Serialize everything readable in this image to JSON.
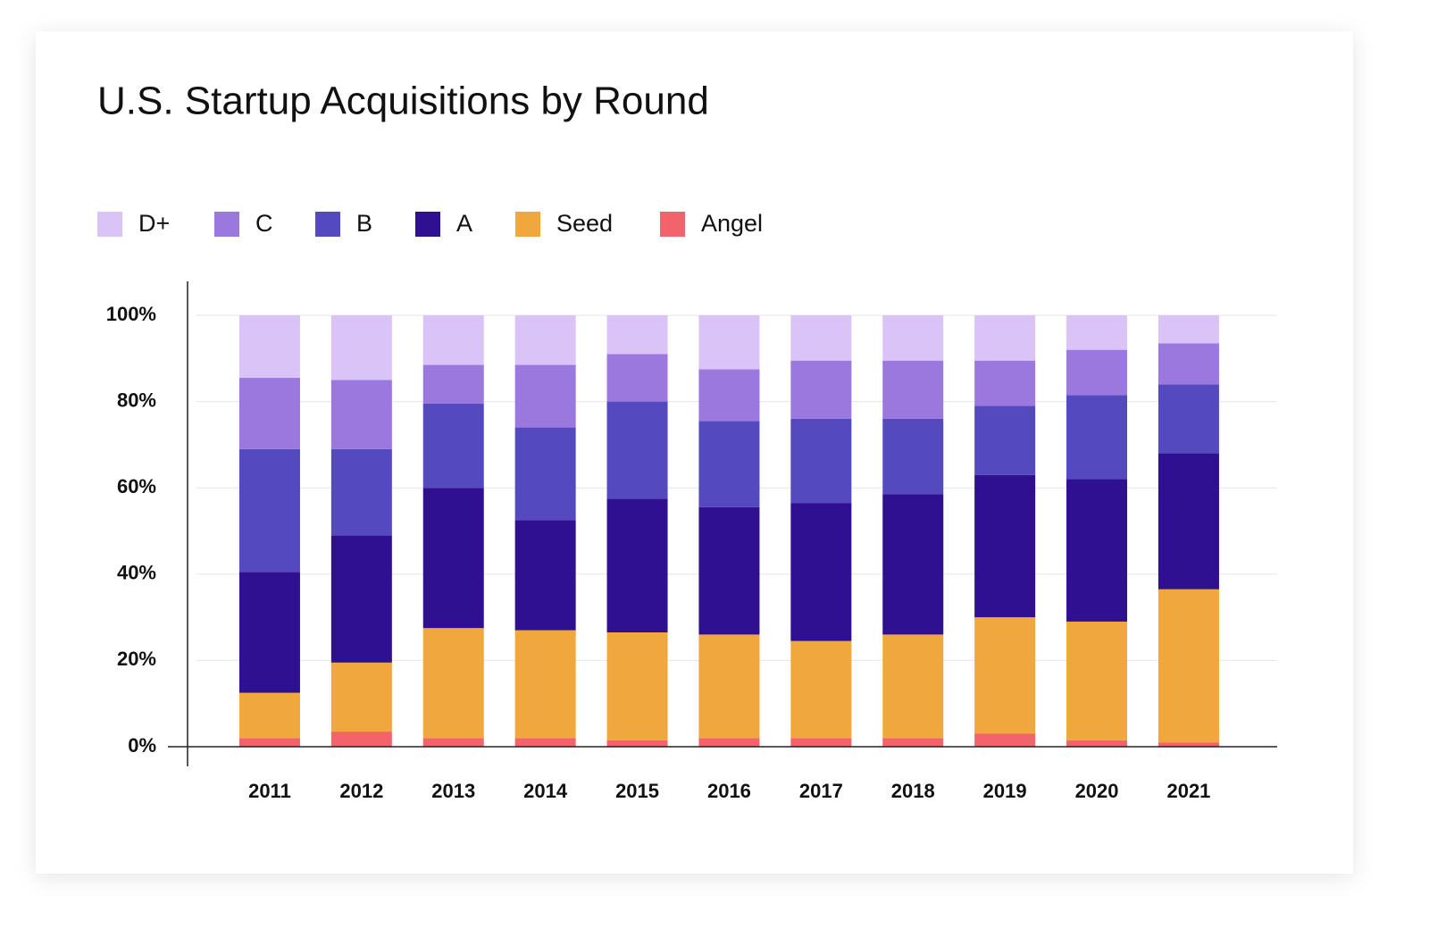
{
  "chart_data": {
    "type": "stacked-bar",
    "title": "U.S. Startup Acquisitions by Round",
    "categories": [
      "2011",
      "2012",
      "2013",
      "2014",
      "2015",
      "2016",
      "2017",
      "2018",
      "2019",
      "2020",
      "2021"
    ],
    "series": [
      {
        "name": "D+",
        "color": "#d9c3f7",
        "values": [
          14.5,
          15,
          11.5,
          11.5,
          9,
          12.5,
          10.5,
          10.5,
          10.5,
          8,
          6.5
        ]
      },
      {
        "name": "C",
        "color": "#9b78de",
        "values": [
          16.5,
          16,
          9,
          14.5,
          11,
          12,
          13.5,
          13.5,
          10.5,
          10.5,
          9.5
        ]
      },
      {
        "name": "B",
        "color": "#5549c0",
        "values": [
          28.5,
          20,
          19.5,
          21.5,
          22.5,
          20,
          19.5,
          17.5,
          16,
          19.5,
          16
        ]
      },
      {
        "name": "A",
        "color": "#2f1090",
        "values": [
          28,
          29.5,
          32.5,
          25.5,
          31,
          29.5,
          32,
          32.5,
          33,
          33,
          31.5
        ]
      },
      {
        "name": "Seed",
        "color": "#f0a83e",
        "values": [
          10.5,
          16,
          25.5,
          25,
          25,
          24,
          22.5,
          24,
          27,
          27.5,
          35.5
        ]
      },
      {
        "name": "Angel",
        "color": "#f2636b",
        "values": [
          2,
          3.5,
          2,
          2,
          1.5,
          2,
          2,
          2,
          3,
          1.5,
          1
        ]
      }
    ],
    "ylim": [
      0,
      100
    ],
    "yticks": [
      {
        "value": 0,
        "label": "0%"
      },
      {
        "value": 20,
        "label": "20%"
      },
      {
        "value": 40,
        "label": "40%"
      },
      {
        "value": 60,
        "label": "60%"
      },
      {
        "value": 80,
        "label": "80%"
      },
      {
        "value": 100,
        "label": "100%"
      }
    ],
    "grid": true
  }
}
